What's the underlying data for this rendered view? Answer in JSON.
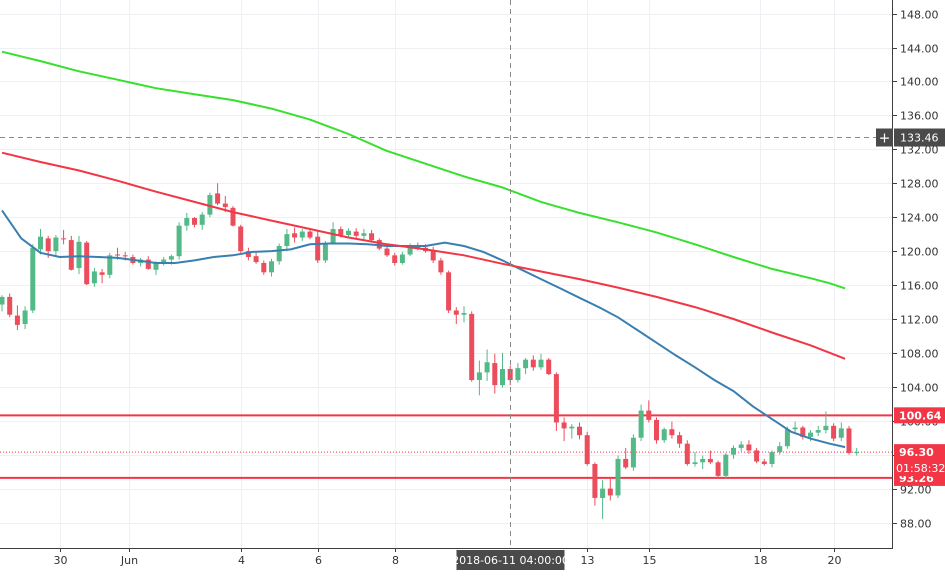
{
  "chart_data": {
    "type": "candlestick",
    "instrument_note": "",
    "ylim": [
      85.0,
      149.6
    ],
    "price_axis": {
      "ticks": [
        148.0,
        144.0,
        140.0,
        136.0,
        132.0,
        128.0,
        124.0,
        120.0,
        116.0,
        112.0,
        108.0,
        104.0,
        100.0,
        96.0,
        92.0,
        88.0
      ],
      "tick_labels": [
        "148.00",
        "144.00",
        "140.00",
        "136.00",
        "132.00",
        "128.00",
        "124.00",
        "120.00",
        "116.00",
        "112.00",
        "108.00",
        "104.00",
        "100.00",
        "96.00",
        "92.00",
        "88.00"
      ]
    },
    "time_axis": {
      "labels": [
        "30",
        "Jun",
        "4",
        "6",
        "8",
        "13",
        "15",
        "18",
        "20"
      ],
      "label_slots": [
        15,
        33,
        62,
        82,
        102,
        152,
        168,
        197,
        216
      ],
      "crosshair_label": "2018-06-11 04:00:00",
      "crosshair_slot": 132
    },
    "horizontal_levels": [
      {
        "name": "resistance",
        "value": 100.64,
        "label": "100.64",
        "color": "#f23645"
      },
      {
        "name": "support",
        "value": 93.26,
        "label": "93.26",
        "color": "#f23645"
      }
    ],
    "last_price": {
      "value": 96.3,
      "label": "96.30",
      "countdown": "01:58:32",
      "color": "#f23645"
    },
    "crosshair_price": {
      "value": 133.46,
      "label": "133.46"
    },
    "moving_averages": [
      {
        "color": "#3a7fb0",
        "points": [
          [
            0,
            124.8
          ],
          [
            5,
            121.5
          ],
          [
            10,
            119.8
          ],
          [
            15,
            119.3
          ],
          [
            20,
            119.4
          ],
          [
            25,
            119.3
          ],
          [
            30,
            119.2
          ],
          [
            35,
            118.9
          ],
          [
            40,
            118.6
          ],
          [
            45,
            118.6
          ],
          [
            50,
            118.9
          ],
          [
            55,
            119.3
          ],
          [
            60,
            119.5
          ],
          [
            65,
            119.9
          ],
          [
            70,
            120.0
          ],
          [
            75,
            120.2
          ],
          [
            80,
            120.8
          ],
          [
            85,
            120.9
          ],
          [
            90,
            120.9
          ],
          [
            95,
            120.8
          ],
          [
            100,
            120.6
          ],
          [
            105,
            120.6
          ],
          [
            110,
            120.6
          ],
          [
            115,
            121.0
          ],
          [
            120,
            120.6
          ],
          [
            125,
            119.9
          ],
          [
            130,
            118.9
          ],
          [
            135,
            117.8
          ],
          [
            140,
            116.7
          ],
          [
            145,
            115.6
          ],
          [
            150,
            114.5
          ],
          [
            155,
            113.4
          ],
          [
            160,
            112.2
          ],
          [
            165,
            110.7
          ],
          [
            170,
            109.2
          ],
          [
            175,
            107.7
          ],
          [
            180,
            106.3
          ],
          [
            185,
            104.8
          ],
          [
            190,
            103.5
          ],
          [
            195,
            101.7
          ],
          [
            200,
            100.2
          ],
          [
            205,
            98.7
          ],
          [
            210,
            97.9
          ],
          [
            215,
            97.3
          ],
          [
            219,
            96.9
          ]
        ]
      },
      {
        "color": "#f23645",
        "points": [
          [
            0,
            131.6
          ],
          [
            10,
            130.5
          ],
          [
            20,
            129.5
          ],
          [
            30,
            128.3
          ],
          [
            40,
            127.0
          ],
          [
            50,
            125.8
          ],
          [
            60,
            124.6
          ],
          [
            70,
            123.6
          ],
          [
            80,
            122.6
          ],
          [
            90,
            121.6
          ],
          [
            100,
            120.8
          ],
          [
            110,
            120.2
          ],
          [
            120,
            119.5
          ],
          [
            130,
            118.5
          ],
          [
            140,
            117.6
          ],
          [
            150,
            116.7
          ],
          [
            160,
            115.7
          ],
          [
            170,
            114.6
          ],
          [
            180,
            113.4
          ],
          [
            190,
            112.0
          ],
          [
            200,
            110.4
          ],
          [
            210,
            108.9
          ],
          [
            219,
            107.3
          ]
        ]
      },
      {
        "color": "#36e02d",
        "points": [
          [
            0,
            143.5
          ],
          [
            10,
            142.4
          ],
          [
            20,
            141.2
          ],
          [
            30,
            140.2
          ],
          [
            40,
            139.2
          ],
          [
            50,
            138.5
          ],
          [
            60,
            137.8
          ],
          [
            70,
            136.8
          ],
          [
            80,
            135.5
          ],
          [
            90,
            133.8
          ],
          [
            100,
            131.8
          ],
          [
            110,
            130.3
          ],
          [
            120,
            128.8
          ],
          [
            130,
            127.5
          ],
          [
            140,
            125.8
          ],
          [
            150,
            124.5
          ],
          [
            160,
            123.4
          ],
          [
            170,
            122.2
          ],
          [
            180,
            120.8
          ],
          [
            190,
            119.3
          ],
          [
            200,
            117.9
          ],
          [
            210,
            116.8
          ],
          [
            215,
            116.2
          ],
          [
            219,
            115.6
          ]
        ]
      }
    ],
    "candles": [
      [
        0,
        113.7,
        114.8,
        112.9,
        114.6
      ],
      [
        2,
        114.6,
        115.0,
        112.2,
        112.5
      ],
      [
        4,
        112.4,
        113.6,
        110.7,
        111.3
      ],
      [
        6,
        111.4,
        113.5,
        110.8,
        113.0
      ],
      [
        8,
        113.0,
        120.8,
        112.7,
        120.4
      ],
      [
        10,
        120.2,
        122.6,
        119.6,
        121.7
      ],
      [
        12,
        121.5,
        121.8,
        119.2,
        120.0
      ],
      [
        14,
        120.0,
        121.9,
        119.5,
        121.6
      ],
      [
        16,
        121.5,
        122.5,
        120.8,
        121.4
      ],
      [
        18,
        121.3,
        121.8,
        117.7,
        117.8
      ],
      [
        20,
        118.0,
        121.8,
        117.3,
        121.1
      ],
      [
        22,
        121.0,
        121.2,
        116.0,
        116.1
      ],
      [
        24,
        116.2,
        118.0,
        115.8,
        117.6
      ],
      [
        26,
        117.5,
        117.9,
        116.2,
        117.2
      ],
      [
        28,
        117.2,
        119.8,
        116.8,
        119.5
      ],
      [
        30,
        119.6,
        120.4,
        119.0,
        119.5
      ],
      [
        32,
        119.5,
        119.9,
        118.9,
        119.4
      ],
      [
        34,
        119.3,
        119.6,
        118.4,
        118.6
      ],
      [
        36,
        118.6,
        119.2,
        118.2,
        119.0
      ],
      [
        38,
        119.0,
        119.4,
        117.8,
        117.9
      ],
      [
        40,
        117.8,
        118.8,
        117.2,
        118.6
      ],
      [
        42,
        118.6,
        119.3,
        118.3,
        119.0
      ],
      [
        44,
        119.0,
        119.6,
        118.4,
        119.4
      ],
      [
        46,
        119.4,
        123.4,
        119.0,
        123.0
      ],
      [
        48,
        123.0,
        124.5,
        122.4,
        123.9
      ],
      [
        50,
        123.9,
        124.0,
        122.8,
        123.1
      ],
      [
        52,
        123.1,
        124.6,
        122.5,
        124.3
      ],
      [
        54,
        124.3,
        126.9,
        124.0,
        126.6
      ],
      [
        56,
        126.8,
        128.0,
        125.4,
        125.6
      ],
      [
        58,
        125.6,
        126.5,
        124.6,
        125.2
      ],
      [
        60,
        125.1,
        125.3,
        122.9,
        123.0
      ],
      [
        62,
        122.9,
        123.1,
        119.8,
        120.0
      ],
      [
        64,
        120.0,
        120.4,
        118.9,
        119.3
      ],
      [
        66,
        119.4,
        119.8,
        118.5,
        118.7
      ],
      [
        68,
        118.6,
        118.9,
        117.2,
        117.5
      ],
      [
        70,
        117.5,
        119.1,
        117.0,
        118.8
      ],
      [
        72,
        118.8,
        120.9,
        118.4,
        120.6
      ],
      [
        74,
        120.6,
        122.6,
        120.0,
        122.0
      ],
      [
        76,
        122.1,
        122.8,
        121.0,
        121.6
      ],
      [
        78,
        121.6,
        122.6,
        121.2,
        122.3
      ],
      [
        80,
        122.3,
        122.7,
        121.4,
        121.6
      ],
      [
        82,
        121.7,
        122.4,
        118.6,
        118.9
      ],
      [
        84,
        118.9,
        121.2,
        118.6,
        120.9
      ],
      [
        86,
        120.9,
        123.4,
        120.8,
        122.6
      ],
      [
        88,
        122.6,
        122.9,
        121.6,
        121.9
      ],
      [
        90,
        121.9,
        122.7,
        121.6,
        122.4
      ],
      [
        92,
        122.3,
        122.7,
        121.5,
        121.8
      ],
      [
        94,
        121.8,
        122.6,
        121.3,
        122.1
      ],
      [
        96,
        122.1,
        122.5,
        121.0,
        121.3
      ],
      [
        98,
        121.3,
        121.5,
        120.1,
        120.3
      ],
      [
        100,
        120.3,
        120.6,
        119.3,
        119.5
      ],
      [
        102,
        119.5,
        119.8,
        118.3,
        118.6
      ],
      [
        104,
        118.6,
        119.9,
        118.4,
        119.6
      ],
      [
        106,
        119.6,
        120.9,
        119.4,
        120.6
      ],
      [
        108,
        120.6,
        121.0,
        120.1,
        120.4
      ],
      [
        110,
        120.4,
        120.8,
        119.8,
        120.0
      ],
      [
        112,
        120.0,
        120.5,
        118.6,
        118.9
      ],
      [
        114,
        118.9,
        119.2,
        117.2,
        117.5
      ],
      [
        116,
        117.5,
        117.7,
        112.7,
        113.0
      ],
      [
        118,
        113.0,
        113.4,
        111.4,
        112.5
      ],
      [
        120,
        112.5,
        113.5,
        111.6,
        112.7
      ],
      [
        122,
        112.6,
        112.9,
        104.6,
        104.8
      ],
      [
        124,
        104.8,
        107.1,
        103.0,
        105.7
      ],
      [
        126,
        105.7,
        108.4,
        104.7,
        106.9
      ],
      [
        128,
        106.8,
        107.9,
        103.2,
        104.2
      ],
      [
        130,
        104.2,
        108.0,
        103.9,
        106.1
      ],
      [
        132,
        106.1,
        106.5,
        104.2,
        104.8
      ],
      [
        134,
        104.8,
        106.8,
        104.5,
        106.2
      ],
      [
        136,
        106.2,
        107.4,
        105.5,
        107.2
      ],
      [
        138,
        107.2,
        107.7,
        105.9,
        106.3
      ],
      [
        140,
        106.3,
        107.9,
        106.0,
        107.2
      ],
      [
        142,
        107.2,
        107.4,
        105.4,
        105.5
      ],
      [
        144,
        105.5,
        105.7,
        98.8,
        99.8
      ],
      [
        146,
        99.8,
        100.4,
        97.6,
        99.1
      ],
      [
        148,
        99.1,
        99.6,
        97.9,
        99.3
      ],
      [
        150,
        99.3,
        99.8,
        97.8,
        98.3
      ],
      [
        152,
        98.3,
        98.7,
        94.7,
        94.9
      ],
      [
        154,
        94.9,
        95.1,
        90.0,
        90.9
      ],
      [
        156,
        90.9,
        93.0,
        88.4,
        92.0
      ],
      [
        158,
        92.0,
        93.3,
        90.6,
        91.2
      ],
      [
        160,
        91.2,
        95.9,
        90.9,
        95.5
      ],
      [
        162,
        95.5,
        96.8,
        94.3,
        94.5
      ],
      [
        164,
        94.5,
        98.4,
        94.1,
        98.0
      ],
      [
        166,
        98.0,
        101.9,
        97.6,
        101.2
      ],
      [
        168,
        101.2,
        102.4,
        99.8,
        100.1
      ],
      [
        170,
        100.1,
        100.4,
        97.3,
        97.7
      ],
      [
        172,
        97.7,
        99.2,
        97.4,
        99.0
      ],
      [
        174,
        99.0,
        99.9,
        97.9,
        98.3
      ],
      [
        176,
        98.3,
        98.7,
        96.8,
        97.3
      ],
      [
        178,
        97.3,
        97.7,
        94.7,
        94.9
      ],
      [
        180,
        94.9,
        96.3,
        94.6,
        95.1
      ],
      [
        182,
        95.1,
        95.9,
        94.3,
        95.5
      ],
      [
        184,
        95.5,
        96.5,
        94.9,
        95.1
      ],
      [
        186,
        95.1,
        95.3,
        93.2,
        93.5
      ],
      [
        188,
        93.5,
        96.2,
        93.2,
        96.0
      ],
      [
        190,
        96.0,
        97.1,
        95.5,
        96.8
      ],
      [
        192,
        96.8,
        97.6,
        96.4,
        97.2
      ],
      [
        194,
        97.2,
        97.7,
        96.1,
        96.5
      ],
      [
        196,
        96.5,
        96.8,
        95.0,
        95.2
      ],
      [
        198,
        95.2,
        95.5,
        94.7,
        94.9
      ],
      [
        200,
        94.9,
        96.5,
        94.5,
        96.3
      ],
      [
        202,
        96.3,
        97.5,
        96.0,
        97.0
      ],
      [
        204,
        97.0,
        99.3,
        96.7,
        99.0
      ],
      [
        206,
        99.0,
        99.9,
        98.5,
        99.2
      ],
      [
        208,
        99.2,
        99.4,
        97.8,
        98.1
      ],
      [
        210,
        98.1,
        98.9,
        97.6,
        98.6
      ],
      [
        212,
        98.6,
        99.4,
        98.2,
        98.9
      ],
      [
        214,
        98.9,
        101.1,
        98.5,
        99.4
      ],
      [
        216,
        99.4,
        99.7,
        97.6,
        97.9
      ],
      [
        218,
        98.0,
        99.8,
        97.6,
        99.1
      ],
      [
        220,
        99.1,
        99.4,
        96.0,
        96.2
      ],
      [
        222,
        96.2,
        96.8,
        95.9,
        96.3
      ]
    ]
  }
}
